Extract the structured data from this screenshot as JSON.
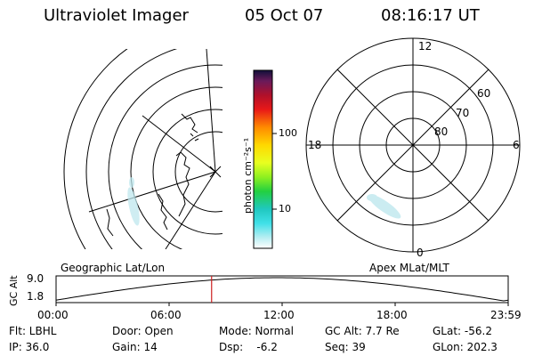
{
  "header": {
    "title": "Ultraviolet Imager",
    "date": "05 Oct 07",
    "time": "08:16:17 UT"
  },
  "colorbar": {
    "unit_label": "photon cm⁻²s⁻¹",
    "tick_100": "100",
    "tick_10": "10"
  },
  "polar_plot": {
    "top_label": "12",
    "left_label": "18",
    "right_label": "6",
    "bottom_label": "0",
    "ring_60": "60",
    "ring_70": "70",
    "ring_80": "80"
  },
  "altitude_plot": {
    "ylabel": "GC Alt",
    "y_max": "9.0",
    "y_min": "1.8",
    "left_caption": "Geographic Lat/Lon",
    "right_caption": "Apex MLat/MLT",
    "x_ticks": [
      "00:00",
      "06:00",
      "12:00",
      "18:00",
      "23:59"
    ],
    "marker_fraction": 0.344
  },
  "status": {
    "filter": "Flt: LBHL",
    "ip": "IP: 36.0",
    "door": "Door: Open",
    "gain": "Gain: 14",
    "mode": "Mode: Normal",
    "dsp": "Dsp:    -6.2",
    "gc_alt": "GC Alt: 7.7 Re",
    "seq": "Seq: 39",
    "glat": "GLat: -56.2",
    "glon": "GLon: 202.3"
  }
}
